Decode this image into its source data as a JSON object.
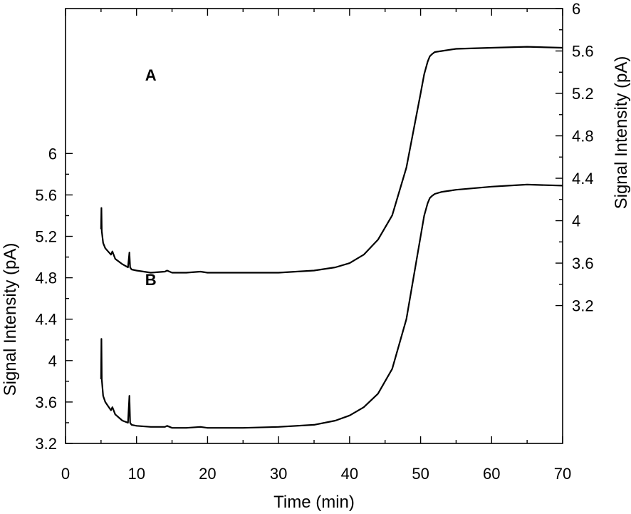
{
  "chart_data": {
    "type": "line",
    "xlabel": "Time (min)",
    "ylabel_left": "Signal Intensity (pA)",
    "ylabel_right": "Signal Intensity (pA)",
    "xlim": [
      0,
      70
    ],
    "x_ticks": [
      0,
      10,
      20,
      30,
      40,
      50,
      60,
      70
    ],
    "ylim_left": [
      3.2,
      7.4
    ],
    "y_ticks_left": [
      3.2,
      3.6,
      4,
      4.4,
      4.8,
      5.2,
      5.6,
      6
    ],
    "ylim_right": [
      1.9,
      6
    ],
    "y_ticks_right": [
      3.2,
      3.6,
      4,
      4.4,
      4.8,
      5.2,
      5.6,
      6
    ],
    "grid": false,
    "annotations": [
      {
        "text": "A",
        "x": 12,
        "y_right": 5.32
      },
      {
        "text": "B",
        "x": 12,
        "y_left": 4.73
      }
    ],
    "series": [
      {
        "label": "A",
        "axis": "right",
        "x": [
          5.0,
          5.05,
          5.1,
          5.3,
          5.6,
          6.0,
          6.4,
          6.6,
          7,
          8,
          8.8,
          9.0,
          9.1,
          9.3,
          10,
          12,
          14,
          14.3,
          15,
          17,
          19,
          20,
          25,
          30,
          35,
          38,
          40,
          42,
          44,
          46,
          48,
          49,
          50,
          50.5,
          51,
          51.3,
          51.6,
          52,
          53,
          55,
          60,
          65,
          70
        ],
        "y": [
          3.92,
          4.12,
          3.9,
          3.79,
          3.74,
          3.71,
          3.68,
          3.71,
          3.64,
          3.59,
          3.56,
          3.7,
          3.56,
          3.54,
          3.53,
          3.51,
          3.52,
          3.53,
          3.51,
          3.51,
          3.52,
          3.51,
          3.51,
          3.51,
          3.53,
          3.56,
          3.6,
          3.68,
          3.82,
          4.05,
          4.5,
          4.85,
          5.2,
          5.38,
          5.5,
          5.55,
          5.57,
          5.59,
          5.6,
          5.62,
          5.63,
          5.64,
          5.63
        ]
      },
      {
        "label": "B",
        "axis": "left",
        "x": [
          5.0,
          5.05,
          5.1,
          5.3,
          5.6,
          6.0,
          6.4,
          6.6,
          7,
          8,
          8.8,
          9.0,
          9.1,
          9.3,
          10,
          12,
          14,
          14.3,
          15,
          17,
          19,
          20,
          25,
          30,
          35,
          38,
          40,
          42,
          44,
          46,
          48,
          49,
          50,
          50.5,
          51,
          51.3,
          51.6,
          52,
          53,
          55,
          60,
          65,
          70
        ],
        "y": [
          3.82,
          4.21,
          3.82,
          3.66,
          3.6,
          3.56,
          3.52,
          3.55,
          3.48,
          3.42,
          3.4,
          3.66,
          3.4,
          3.38,
          3.37,
          3.36,
          3.36,
          3.37,
          3.35,
          3.35,
          3.36,
          3.35,
          3.35,
          3.36,
          3.38,
          3.42,
          3.47,
          3.55,
          3.68,
          3.92,
          4.4,
          4.8,
          5.2,
          5.4,
          5.52,
          5.57,
          5.59,
          5.61,
          5.63,
          5.65,
          5.68,
          5.7,
          5.69
        ]
      }
    ]
  }
}
